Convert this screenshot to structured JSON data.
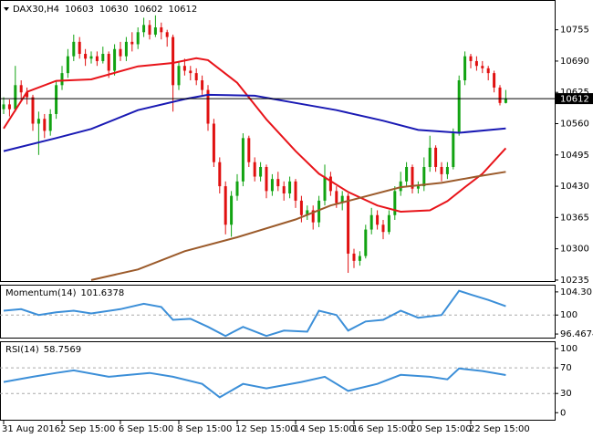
{
  "chart_data": [
    {
      "type": "candlestick",
      "symbol": "DAX30,H4",
      "categories": [
        "31 Aug 2016",
        null,
        null,
        null,
        null,
        null,
        null,
        null,
        null,
        null,
        "2 Sep 15:00",
        null,
        null,
        null,
        null,
        null,
        null,
        null,
        null,
        null,
        "6 Sep 15:00",
        null,
        null,
        null,
        null,
        null,
        null,
        null,
        null,
        null,
        "8 Sep 15:00",
        null,
        null,
        null,
        null,
        null,
        null,
        null,
        null,
        null,
        "12 Sep 15:00",
        null,
        null,
        null,
        null,
        null,
        null,
        null,
        null,
        null,
        "14 Sep 15:00",
        null,
        null,
        null,
        null,
        null,
        null,
        null,
        null,
        null,
        "16 Sep 15:00",
        null,
        null,
        null,
        null,
        null,
        null,
        null,
        null,
        null,
        "20 Sep 15:00",
        null,
        null,
        null,
        null,
        null,
        null,
        null,
        null,
        null,
        "22 Sep 15:00",
        null,
        null,
        null,
        null,
        null,
        null
      ],
      "open": [
        10590,
        10600,
        10590,
        10640,
        10625,
        10615,
        10560,
        10570,
        10545,
        10580,
        10640,
        10665,
        10700,
        10730,
        10705,
        10695,
        10700,
        10690,
        10705,
        10670,
        10715,
        10700,
        10730,
        10725,
        10750,
        10765,
        10745,
        10760,
        10750,
        10740,
        10640,
        10680,
        10670,
        10665,
        10650,
        10630,
        10560,
        10480,
        10430,
        10350,
        10410,
        10440,
        10530,
        10480,
        10450,
        10470,
        10420,
        10445,
        10430,
        10415,
        10440,
        10400,
        10370,
        10380,
        10355,
        10400,
        10450,
        10420,
        10395,
        10410,
        10290,
        10275,
        10285,
        10340,
        10370,
        10350,
        10335,
        10370,
        10420,
        10440,
        10470,
        10425,
        10430,
        10470,
        10510,
        10470,
        10455,
        10470,
        10540,
        10650,
        10700,
        10690,
        10680,
        10675,
        10665,
        10635,
        10603
      ],
      "high": [
        10615,
        10610,
        10680,
        10650,
        10635,
        10620,
        10585,
        10580,
        10590,
        10650,
        10680,
        10715,
        10745,
        10740,
        10715,
        10710,
        10710,
        10720,
        10710,
        10725,
        10730,
        10740,
        10750,
        10760,
        10780,
        10775,
        10785,
        10770,
        10755,
        10745,
        10690,
        10695,
        10680,
        10675,
        10660,
        10640,
        10570,
        10490,
        10440,
        10420,
        10455,
        10540,
        10535,
        10490,
        10480,
        10475,
        10455,
        10460,
        10440,
        10450,
        10445,
        10410,
        10390,
        10390,
        10410,
        10475,
        10460,
        10430,
        10420,
        10415,
        10300,
        10295,
        10350,
        10385,
        10380,
        10360,
        10380,
        10430,
        10460,
        10480,
        10475,
        10440,
        10490,
        10535,
        10515,
        10480,
        10480,
        10550,
        10660,
        10710,
        10705,
        10700,
        10690,
        10680,
        10670,
        10640,
        10630
      ],
      "low": [
        10580,
        10575,
        10585,
        10610,
        10600,
        10545,
        10495,
        10530,
        10535,
        10570,
        10630,
        10655,
        10690,
        10695,
        10680,
        10685,
        10680,
        10685,
        10655,
        10660,
        10690,
        10690,
        10710,
        10715,
        10740,
        10735,
        10740,
        10735,
        10720,
        10585,
        10630,
        10660,
        10650,
        10640,
        10620,
        10545,
        10470,
        10415,
        10330,
        10325,
        10400,
        10430,
        10470,
        10440,
        10440,
        10405,
        10410,
        10420,
        10400,
        10405,
        10385,
        10355,
        10360,
        10340,
        10345,
        10390,
        10410,
        10385,
        10380,
        10250,
        10260,
        10265,
        10280,
        10330,
        10340,
        10320,
        10330,
        10360,
        10410,
        10430,
        10415,
        10415,
        10420,
        10460,
        10460,
        10440,
        10445,
        10465,
        10535,
        10640,
        10675,
        10670,
        10665,
        10650,
        10625,
        10598,
        10602
      ],
      "close": [
        10600,
        10590,
        10640,
        10625,
        10615,
        10560,
        10570,
        10545,
        10580,
        10640,
        10665,
        10700,
        10730,
        10705,
        10695,
        10700,
        10690,
        10705,
        10670,
        10715,
        10700,
        10730,
        10725,
        10750,
        10765,
        10745,
        10760,
        10750,
        10740,
        10640,
        10680,
        10670,
        10665,
        10650,
        10630,
        10560,
        10480,
        10430,
        10350,
        10410,
        10440,
        10530,
        10480,
        10450,
        10470,
        10420,
        10445,
        10430,
        10415,
        10440,
        10400,
        10370,
        10380,
        10355,
        10400,
        10450,
        10420,
        10395,
        10410,
        10290,
        10275,
        10285,
        10340,
        10370,
        10350,
        10335,
        10370,
        10420,
        10440,
        10470,
        10425,
        10430,
        10470,
        10510,
        10470,
        10455,
        10470,
        10540,
        10650,
        10700,
        10690,
        10680,
        10675,
        10665,
        10635,
        10603,
        10612
      ],
      "up_color": "#12a312",
      "down_color": "#e01010",
      "lines": [
        {
          "color": "#e8141a",
          "x": [
            0,
            4,
            9,
            15,
            23,
            29,
            33,
            35,
            40,
            45,
            50,
            54,
            59,
            64,
            68,
            73,
            76,
            79,
            82,
            86
          ],
          "values": [
            10550,
            10626,
            10649,
            10652,
            10679,
            10686,
            10696,
            10692,
            10645,
            10569,
            10503,
            10456,
            10418,
            10390,
            10377,
            10380,
            10399,
            10428,
            10456,
            10509
          ]
        },
        {
          "color": "#1a1ab4",
          "x": [
            0,
            9,
            15,
            23,
            31,
            35,
            43,
            50,
            57,
            65,
            71,
            78,
            86
          ],
          "values": [
            10503,
            10530,
            10549,
            10588,
            10611,
            10620,
            10618,
            10603,
            10588,
            10566,
            10547,
            10541,
            10550
          ]
        },
        {
          "color": "#9b5a2a",
          "x": [
            15,
            23,
            31,
            40,
            50,
            56,
            62,
            68,
            75,
            81,
            86
          ],
          "values": [
            10235,
            10257,
            10295,
            10324,
            10361,
            10390,
            10409,
            10428,
            10437,
            10450,
            10460
          ]
        }
      ],
      "ylim": [
        10233,
        10815
      ],
      "yticks": [
        10755,
        10690,
        10625,
        10560,
        10495,
        10430,
        10365,
        10300,
        10235
      ]
    },
    {
      "type": "line",
      "name": "Momentum(14)",
      "color": "#3c8fd8",
      "x": [
        0,
        3,
        6,
        9,
        12,
        15,
        20,
        24,
        27,
        29,
        32,
        35,
        38,
        41,
        45,
        48,
        52,
        54,
        57,
        59,
        62,
        65,
        68,
        71,
        75,
        78,
        80,
        83,
        86
      ],
      "values": [
        100.8,
        101.1,
        100.0,
        100.5,
        100.8,
        100.3,
        101.1,
        102.1,
        101.5,
        99.1,
        99.3,
        97.8,
        96.1,
        97.8,
        96.1,
        97.1,
        96.9,
        100.8,
        100.0,
        97.1,
        98.8,
        99.1,
        100.8,
        99.5,
        100.0,
        104.5,
        103.8,
        102.8,
        101.6378
      ],
      "levels": [
        100
      ],
      "ylim": [
        95.8,
        105.47
      ],
      "yticks": [
        104.3017,
        100,
        96.4674
      ]
    },
    {
      "type": "line",
      "name": "RSI(14)",
      "color": "#3c8fd8",
      "x": [
        0,
        5,
        9,
        12,
        18,
        25,
        29,
        34,
        37,
        41,
        45,
        51,
        55,
        59,
        64,
        68,
        73,
        76,
        78,
        82,
        86
      ],
      "values": [
        47.9,
        56,
        62,
        66,
        56,
        62,
        56,
        45,
        24,
        45,
        38,
        48,
        56,
        34,
        45,
        59,
        56,
        52,
        69,
        65,
        58.7569
      ],
      "levels": [
        70,
        30
      ],
      "ylim": [
        -11,
        110
      ],
      "yticks": [
        100,
        70,
        30,
        0
      ]
    }
  ]
}
